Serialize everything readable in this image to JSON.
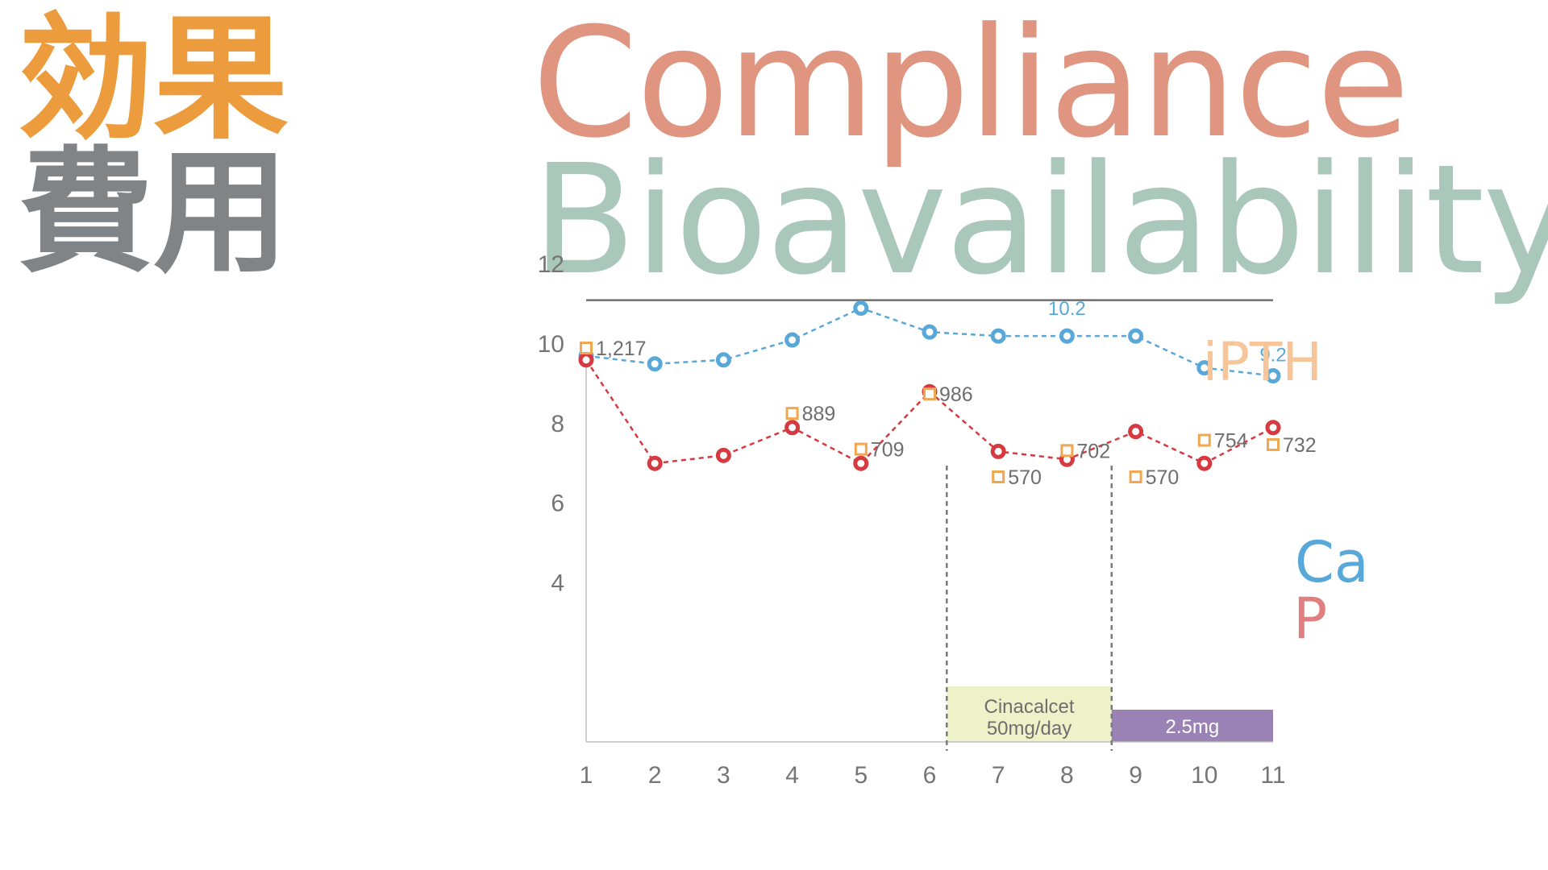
{
  "headings": {
    "kanji_top": "効果",
    "kanji_bottom": "費用",
    "compliance": "Compliance",
    "bioavailability": "Bioavailability"
  },
  "colors": {
    "kanji_top": "#EC9C3D",
    "kanji_bottom": "#808487",
    "compliance": "#E09580",
    "bioavailability": "#A9C7BA",
    "ipth": "#F1A74F",
    "ipth_label": "#F6C69A",
    "ca": "#58A8D9",
    "p": "#D6393F",
    "p_label": "#E07F80",
    "cinacalcet_box": "#EEF2C9",
    "dose_box": "#9A82B4",
    "axis": "#BFBFBF",
    "tick_text": "#757575",
    "reference_line": "#6E6E6E"
  },
  "chart_data": {
    "type": "line",
    "x": [
      1,
      2,
      3,
      4,
      5,
      6,
      7,
      8,
      9,
      10,
      11
    ],
    "x_tick_labels": [
      "1",
      "2",
      "3",
      "4",
      "5",
      "6",
      "7",
      "8",
      "9",
      "10",
      "11"
    ],
    "y_tick_labels": [
      "12",
      "10",
      "8",
      "6",
      "4"
    ],
    "y_ticks": [
      12,
      10,
      8,
      6,
      4
    ],
    "ylim": [
      0,
      12.5
    ],
    "grid": false,
    "reference_line": {
      "y": 11.1,
      "x_from": 1,
      "x_to": 11
    },
    "vertical_dashed_lines": [
      6.25,
      8.65
    ],
    "series": [
      {
        "name": "Ca",
        "key": "ca",
        "values": [
          9.7,
          9.5,
          9.6,
          10.1,
          10.9,
          10.3,
          10.2,
          10.2,
          10.2,
          9.4,
          9.2
        ],
        "annotations": [
          {
            "x": 8,
            "text": "10.2"
          },
          {
            "x": 11,
            "text": "9.2"
          }
        ]
      },
      {
        "name": "P",
        "key": "p",
        "values": [
          9.6,
          7.0,
          7.2,
          7.9,
          7.0,
          8.8,
          7.3,
          7.1,
          7.8,
          7.0,
          7.9
        ]
      },
      {
        "name": "iPTH",
        "key": "ipth",
        "x": [
          1,
          4,
          5,
          6,
          7,
          8,
          9,
          10,
          11
        ],
        "values": [
          1217,
          889,
          709,
          986,
          570,
          702,
          570,
          754,
          732
        ],
        "labels": [
          "1,217",
          "889",
          "709",
          "986",
          "570",
          "702",
          "570",
          "754",
          "732"
        ]
      }
    ],
    "treatment_bars": [
      {
        "line1": "Cinacalcet",
        "line2": "50mg/day",
        "x_from": 6.25,
        "x_to": 8.65,
        "key": "cinacalcet_box"
      },
      {
        "line1": "2.5mg",
        "line2": "",
        "x_from": 8.65,
        "x_to": 11,
        "key": "dose_box"
      }
    ]
  }
}
